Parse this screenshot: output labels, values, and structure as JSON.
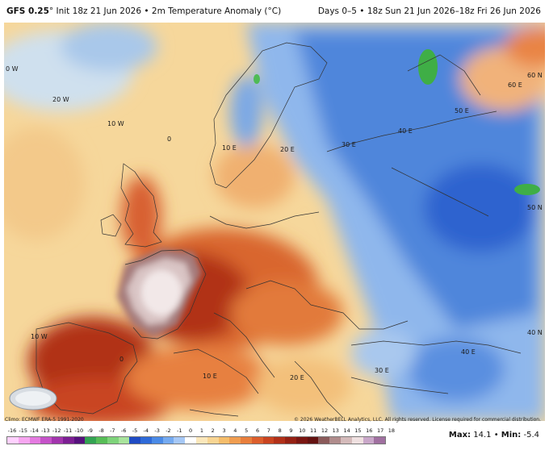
{
  "header": {
    "model": "GFS 0.25",
    "deg": "°",
    "init": "Init 18z 21 Jun 2026",
    "field": "2m Temperature Anomaly (°C)",
    "valid": "Days 0–5 • 18z Sun 21 Jun 2026–18z Fri 26 Jun 2026"
  },
  "map": {
    "graticule_labels": [
      "0 W",
      "20 W",
      "10 W",
      "0",
      "10 E",
      "20 E",
      "30 E",
      "40 E",
      "50 E",
      "60 E",
      "60 N",
      "50 N",
      "40 N",
      "10 W",
      "0",
      "10 E",
      "20 E",
      "30 E",
      "40 E"
    ]
  },
  "footer": {
    "climo": "Climo: ECMWF ERA-5 1991-2020",
    "copyright": "© 2026 WeatherBELL Analytics, LLC. All rights reserved. License required for commercial distribution.",
    "logo_text": "WEATHERBELL"
  },
  "colorbar": {
    "ticks": [
      "-16",
      "-15",
      "-14",
      "-13",
      "-12",
      "-11",
      "-10",
      "-9",
      "-8",
      "-7",
      "-6",
      "-5",
      "-4",
      "-3",
      "-2",
      "-1",
      "0",
      "1",
      "2",
      "3",
      "4",
      "5",
      "6",
      "7",
      "8",
      "9",
      "10",
      "11",
      "12",
      "13",
      "14",
      "15",
      "16",
      "17",
      "18"
    ],
    "colors": [
      "#ffd1ff",
      "#f7a6f0",
      "#e47ae0",
      "#c552c9",
      "#a235ad",
      "#7c1f93",
      "#56117d",
      "#33a352",
      "#57bd57",
      "#7ed37a",
      "#a8e39c",
      "#1f4bc4",
      "#2e6ad8",
      "#4a8ae6",
      "#75aaf0",
      "#a6c8f6",
      "#ffffff",
      "#fbe7bb",
      "#f8d593",
      "#f5bd6b",
      "#f09d50",
      "#e87e3c",
      "#dc5e2c",
      "#c94420",
      "#b13019",
      "#952114",
      "#7a1612",
      "#631211",
      "#8a5a5a",
      "#b08c8c",
      "#d4baba",
      "#efe0e0",
      "#c9a7c9",
      "#a070a0"
    ]
  },
  "stats": {
    "max_label": "Max:",
    "max": "14.1",
    "sep": "•",
    "min_label": "Min:",
    "min": "-5.4"
  }
}
